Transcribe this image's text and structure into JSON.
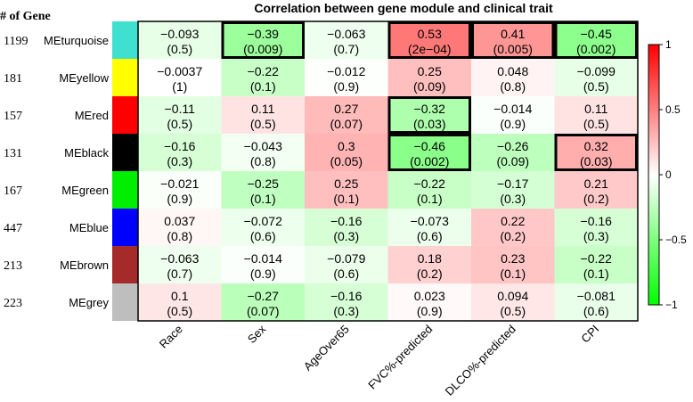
{
  "chart_data": {
    "type": "heatmap",
    "title": "Correlation between gene module and clinical trait",
    "gene_count_header": "# of Gene",
    "rows": [
      {
        "module": "MEturquoise",
        "genes": "1199",
        "color": "#40e0d0"
      },
      {
        "module": "MEyellow",
        "genes": "181",
        "color": "#ffff00"
      },
      {
        "module": "MEred",
        "genes": "157",
        "color": "#ff0000"
      },
      {
        "module": "MEblack",
        "genes": "131",
        "color": "#000000"
      },
      {
        "module": "MEgreen",
        "genes": "167",
        "color": "#00ee00"
      },
      {
        "module": "MEblue",
        "genes": "447",
        "color": "#0000ff"
      },
      {
        "module": "MEbrown",
        "genes": "213",
        "color": "#a52a2a"
      },
      {
        "module": "MEgrey",
        "genes": "223",
        "color": "#bebebe"
      }
    ],
    "columns": [
      "Race",
      "Sex",
      "AgeOver65",
      "FVC%-predicted",
      "DLCO%-predicted",
      "CPI"
    ],
    "correlation_labels": [
      [
        "−0.093",
        "−0.39",
        "−0.063",
        "0.53",
        "0.41",
        "−0.45"
      ],
      [
        "−0.0037",
        "−0.22",
        "−0.012",
        "0.25",
        "0.048",
        "−0.099"
      ],
      [
        "−0.11",
        "0.11",
        "0.27",
        "−0.32",
        "−0.014",
        "0.11"
      ],
      [
        "−0.16",
        "−0.043",
        "0.3",
        "−0.46",
        "−0.26",
        "0.32"
      ],
      [
        "−0.021",
        "−0.25",
        "0.25",
        "−0.22",
        "−0.17",
        "0.21"
      ],
      [
        "0.037",
        "−0.072",
        "−0.16",
        "−0.073",
        "0.22",
        "−0.16"
      ],
      [
        "−0.063",
        "−0.014",
        "−0.079",
        "0.18",
        "0.23",
        "−0.22"
      ],
      [
        "0.1",
        "−0.27",
        "−0.16",
        "0.023",
        "0.094",
        "−0.081"
      ]
    ],
    "pvalue_labels": [
      [
        "(0.5)",
        "(0.009)",
        "(0.7)",
        "(2e−04)",
        "(0.005)",
        "(0.002)"
      ],
      [
        "(1)",
        "(0.1)",
        "(0.9)",
        "(0.09)",
        "(0.8)",
        "(0.5)"
      ],
      [
        "(0.5)",
        "(0.5)",
        "(0.07)",
        "(0.03)",
        "(0.9)",
        "(0.5)"
      ],
      [
        "(0.3)",
        "(0.8)",
        "(0.05)",
        "(0.002)",
        "(0.09)",
        "(0.03)"
      ],
      [
        "(0.9)",
        "(0.1)",
        "(0.1)",
        "(0.1)",
        "(0.3)",
        "(0.2)"
      ],
      [
        "(0.8)",
        "(0.6)",
        "(0.3)",
        "(0.6)",
        "(0.2)",
        "(0.3)"
      ],
      [
        "(0.7)",
        "(0.9)",
        "(0.6)",
        "(0.2)",
        "(0.1)",
        "(0.1)"
      ],
      [
        "(0.5)",
        "(0.07)",
        "(0.3)",
        "(0.9)",
        "(0.5)",
        "(0.6)"
      ]
    ],
    "highlighted_cells": [
      [
        0,
        1
      ],
      [
        0,
        3
      ],
      [
        0,
        4
      ],
      [
        0,
        5
      ],
      [
        2,
        3
      ],
      [
        3,
        3
      ],
      [
        3,
        5
      ]
    ],
    "colorbar": {
      "min": -1,
      "max": 1,
      "ticks": [
        1,
        0.5,
        0,
        -0.5,
        -1
      ],
      "tick_labels": [
        "1",
        "0.5",
        "0",
        "−0.5",
        "−1"
      ],
      "colors": {
        "negative": "#00ff00",
        "zero": "#ffffff",
        "positive": "#ff0000"
      }
    }
  }
}
